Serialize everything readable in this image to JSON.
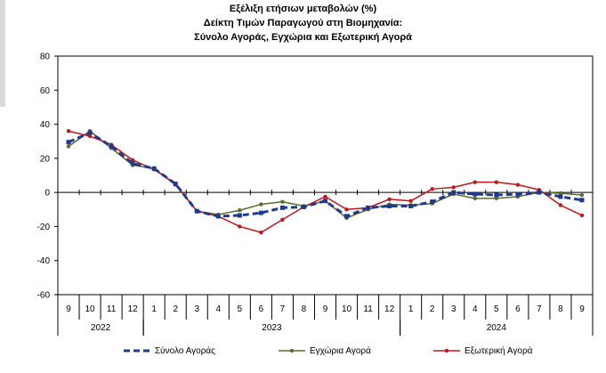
{
  "chart_data": {
    "type": "line",
    "title_lines": [
      "Εξέλιξη ετήσιων μεταβολών (%)",
      "Δείκτη Τιμών Παραγωγού στη Βιομηχανία:",
      "Σύνολο Αγοράς, Εγχώρια και Εξωτερική Αγορά"
    ],
    "ylim": [
      -60,
      80
    ],
    "y_ticks": [
      80,
      60,
      40,
      20,
      0,
      -20,
      -40,
      -60
    ],
    "grid": false,
    "legend_position": "bottom",
    "categories": [
      "9",
      "10",
      "11",
      "12",
      "1",
      "2",
      "3",
      "4",
      "5",
      "6",
      "7",
      "8",
      "9",
      "10",
      "11",
      "12",
      "1",
      "2",
      "3",
      "4",
      "5",
      "6",
      "7",
      "8",
      "9"
    ],
    "years": [
      {
        "label": "2022",
        "start": 0,
        "end": 3
      },
      {
        "label": "2023",
        "start": 4,
        "end": 15
      },
      {
        "label": "2024",
        "start": 16,
        "end": 24
      }
    ],
    "series": [
      {
        "name": "Σύνολο Αγοράς",
        "color": "#1f3a8c",
        "style": "dashed",
        "values": [
          29.5,
          35,
          27,
          17,
          14,
          5,
          -11,
          -14,
          -13.5,
          -12,
          -9,
          -8.5,
          -5,
          -14,
          -9,
          -8,
          -8,
          -5.5,
          0,
          -1,
          -1.5,
          -1,
          0,
          -2.5,
          -4.5
        ]
      },
      {
        "name": "Εγχώρια Αγορά",
        "color": "#5a6b2e",
        "style": "solid",
        "values": [
          27,
          36,
          26,
          16,
          14,
          4.5,
          -11,
          -13,
          -10.5,
          -7,
          -5.5,
          -8,
          -5,
          -15,
          -10,
          -7,
          -7.5,
          -6.5,
          -1,
          -3.5,
          -3.5,
          -2.5,
          0,
          -0.5,
          -1.5
        ]
      },
      {
        "name": "Εξωτερική Αγορά",
        "color": "#c0171c",
        "style": "solid",
        "values": [
          36,
          33,
          28,
          19,
          13.5,
          5,
          -11,
          -14,
          -20,
          -23.5,
          -16,
          -8.5,
          -2.5,
          -10,
          -9,
          -4,
          -5,
          2,
          3,
          6,
          6,
          4.5,
          1.5,
          -7.5,
          -13.5
        ]
      }
    ]
  }
}
